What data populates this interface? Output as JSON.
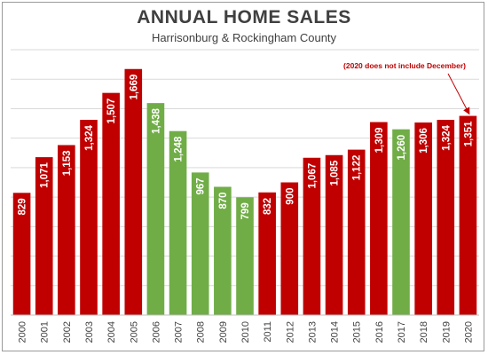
{
  "chart_data": {
    "type": "bar",
    "title": "ANNUAL HOME SALES",
    "subtitle": "Harrisonburg & Rockingham County",
    "xlabel": "",
    "ylabel": "",
    "categories": [
      "2000",
      "2001",
      "2002",
      "2003",
      "2004",
      "2005",
      "2006",
      "2007",
      "2008",
      "2009",
      "2010",
      "2011",
      "2012",
      "2013",
      "2014",
      "2015",
      "2016",
      "2017",
      "2018",
      "2019",
      "2020"
    ],
    "values": [
      829,
      1071,
      1153,
      1324,
      1507,
      1669,
      1438,
      1248,
      967,
      870,
      799,
      832,
      900,
      1067,
      1085,
      1122,
      1309,
      1260,
      1306,
      1324,
      1351
    ],
    "value_labels": [
      "829",
      "1,071",
      "1,153",
      "1,324",
      "1,507",
      "1,669",
      "1,438",
      "1,248",
      "967",
      "870",
      "799",
      "832",
      "900",
      "1,067",
      "1,085",
      "1,122",
      "1,309",
      "1,260",
      "1,306",
      "1,324",
      "1,351"
    ],
    "bar_colors": [
      "#c00000",
      "#c00000",
      "#c00000",
      "#c00000",
      "#c00000",
      "#c00000",
      "#70ad47",
      "#70ad47",
      "#70ad47",
      "#70ad47",
      "#70ad47",
      "#c00000",
      "#c00000",
      "#c00000",
      "#c00000",
      "#c00000",
      "#c00000",
      "#70ad47",
      "#c00000",
      "#c00000",
      "#c00000"
    ],
    "colors": {
      "increase": "#c00000",
      "decrease": "#70ad47",
      "grid": "#d9d9d9",
      "annotation": "#c00000"
    },
    "ylim": [
      0,
      1800
    ],
    "y_grid_step": 200,
    "grid": true,
    "legend": "none",
    "annotation": {
      "text": "(2020 does not include December)",
      "target_category": "2020"
    }
  }
}
